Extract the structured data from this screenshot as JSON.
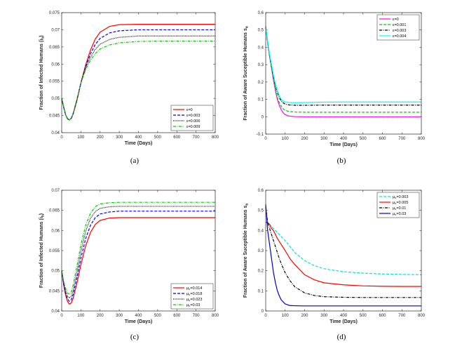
{
  "chart_data": [
    {
      "type": "line",
      "caption": "(a)",
      "xlabel": "Time (Days)",
      "ylabel": "Fraction of Infected Humans (i_h)",
      "xlim": [
        0,
        800
      ],
      "ylim": [
        0.04,
        0.075
      ],
      "xticks": [
        0,
        100,
        200,
        300,
        400,
        500,
        600,
        700,
        800
      ],
      "yticks": [
        0.04,
        0.045,
        0.05,
        0.055,
        0.06,
        0.065,
        0.07,
        0.075
      ],
      "ytick_labels": [
        "0.04",
        "0.045",
        "0.05",
        "0.055",
        "0.06",
        "0.065",
        "0.07",
        "0.075"
      ],
      "legend_loc": "lower-right",
      "x": [
        0,
        10,
        20,
        30,
        40,
        50,
        60,
        80,
        100,
        125,
        150,
        175,
        200,
        250,
        300,
        400,
        500,
        600,
        700,
        800
      ],
      "series": [
        {
          "name": "ε=0",
          "sym": "ε",
          "val": "=0",
          "color": "#ff0000",
          "dash": "",
          "values": [
            0.05,
            0.0475,
            0.0453,
            0.0441,
            0.0437,
            0.0442,
            0.0455,
            0.0495,
            0.0545,
            0.0598,
            0.0641,
            0.0673,
            0.0693,
            0.071,
            0.0715,
            0.0716,
            0.0716,
            0.0716,
            0.0716,
            0.0716
          ]
        },
        {
          "name": "ε=0.003",
          "sym": "ε",
          "val": "=0.003",
          "color": "#0000ff",
          "dash": "4,2",
          "values": [
            0.05,
            0.0475,
            0.0453,
            0.0441,
            0.0437,
            0.0442,
            0.0456,
            0.0497,
            0.0545,
            0.0593,
            0.063,
            0.0657,
            0.0675,
            0.0691,
            0.0697,
            0.07,
            0.07,
            0.07,
            0.07,
            0.07
          ]
        },
        {
          "name": "ε=0.006",
          "sym": "ε",
          "val": "=0.006",
          "color": "#000000",
          "dash": "1,1.2",
          "values": [
            0.05,
            0.0475,
            0.0453,
            0.0441,
            0.0437,
            0.0442,
            0.0456,
            0.0498,
            0.0545,
            0.0588,
            0.062,
            0.0643,
            0.0658,
            0.0672,
            0.0678,
            0.0682,
            0.0682,
            0.0682,
            0.0682,
            0.0682
          ]
        },
        {
          "name": "ε=0.009",
          "sym": "ε",
          "val": "=0.009",
          "color": "#00cc00",
          "dash": "4,1.5,1,1.5",
          "values": [
            0.05,
            0.0475,
            0.0453,
            0.0441,
            0.0437,
            0.0442,
            0.0457,
            0.0499,
            0.0545,
            0.0584,
            0.0611,
            0.0631,
            0.0644,
            0.0656,
            0.0662,
            0.0666,
            0.0667,
            0.0667,
            0.0667,
            0.0667
          ]
        }
      ]
    },
    {
      "type": "line",
      "caption": "(b)",
      "xlabel": "Time (Days)",
      "ylabel": "Fraction of Aware Suceptible Humans s_a",
      "xlim": [
        0,
        800
      ],
      "ylim": [
        -0.1,
        0.6
      ],
      "xticks": [
        0,
        100,
        200,
        300,
        400,
        500,
        600,
        700,
        800
      ],
      "yticks": [
        -0.1,
        0,
        0.1,
        0.2,
        0.3,
        0.4,
        0.5,
        0.6
      ],
      "ytick_labels": [
        "-0.1",
        "0",
        "0.1",
        "0.2",
        "0.3",
        "0.4",
        "0.5",
        "0.6"
      ],
      "legend_loc": "top-right",
      "x": [
        0,
        10,
        20,
        30,
        40,
        50,
        60,
        70,
        80,
        90,
        100,
        120,
        150,
        200,
        300,
        400,
        500,
        600,
        700,
        800
      ],
      "series": [
        {
          "name": "ε=0",
          "sym": "ε",
          "val": "=0",
          "color": "#ff00ff",
          "dash": "",
          "values": [
            0.52,
            0.43,
            0.35,
            0.28,
            0.21,
            0.15,
            0.1,
            0.065,
            0.04,
            0.022,
            0.012,
            0.004,
            0.001,
            0.0,
            0.0,
            0.0,
            0.0,
            0.0,
            0.0,
            0.0
          ]
        },
        {
          "name": "ε=0.001",
          "sym": "ε",
          "val": "=0.001",
          "color": "#00cc00",
          "dash": "4,2",
          "values": [
            0.52,
            0.43,
            0.35,
            0.28,
            0.22,
            0.16,
            0.11,
            0.08,
            0.06,
            0.045,
            0.037,
            0.03,
            0.027,
            0.026,
            0.026,
            0.026,
            0.026,
            0.026,
            0.026,
            0.026
          ]
        },
        {
          "name": "ε=0.003",
          "sym": "ε",
          "val": "=0.003",
          "color": "#000000",
          "dash": "4,1.5,1,1.5",
          "values": [
            0.52,
            0.43,
            0.35,
            0.29,
            0.23,
            0.18,
            0.14,
            0.11,
            0.09,
            0.08,
            0.073,
            0.068,
            0.066,
            0.066,
            0.067,
            0.067,
            0.067,
            0.067,
            0.067,
            0.067
          ]
        },
        {
          "name": "ε=0.004",
          "sym": "ε",
          "val": "=0.004",
          "color": "#00ffff",
          "dash": "",
          "values": [
            0.52,
            0.44,
            0.36,
            0.3,
            0.24,
            0.19,
            0.15,
            0.12,
            0.1,
            0.09,
            0.085,
            0.082,
            0.081,
            0.082,
            0.084,
            0.085,
            0.085,
            0.085,
            0.085,
            0.085
          ]
        }
      ]
    },
    {
      "type": "line",
      "caption": "(c)",
      "xlabel": "Time (Days)",
      "ylabel": "Fraction of Infected Humans (i_h)",
      "xlim": [
        0,
        800
      ],
      "ylim": [
        0.04,
        0.07
      ],
      "xticks": [
        0,
        100,
        200,
        300,
        400,
        500,
        600,
        700,
        800
      ],
      "yticks": [
        0.04,
        0.045,
        0.05,
        0.055,
        0.06,
        0.065,
        0.07
      ],
      "ytick_labels": [
        "0.04",
        "0.045",
        "0.05",
        "0.055",
        "0.06",
        "0.065",
        "0.07"
      ],
      "legend_loc": "lower-right",
      "x": [
        0,
        10,
        20,
        30,
        40,
        50,
        60,
        80,
        100,
        125,
        150,
        175,
        200,
        250,
        300,
        400,
        500,
        600,
        700,
        800
      ],
      "series": [
        {
          "name": "μ_h=0.014",
          "sym": "μ",
          "sub": "h",
          "val": "=0.014",
          "color": "#ff0000",
          "dash": "",
          "values": [
            0.05,
            0.0465,
            0.044,
            0.0424,
            0.0417,
            0.042,
            0.0432,
            0.047,
            0.0515,
            0.0562,
            0.0595,
            0.0615,
            0.0625,
            0.0631,
            0.0632,
            0.0632,
            0.0632,
            0.0632,
            0.0632,
            0.0632
          ]
        },
        {
          "name": "μ_h=0.018",
          "sym": "μ",
          "sub": "h",
          "val": "=0.018",
          "color": "#0000ff",
          "dash": "4,2",
          "values": [
            0.05,
            0.0468,
            0.0445,
            0.043,
            0.0424,
            0.0428,
            0.0442,
            0.0483,
            0.0531,
            0.058,
            0.0613,
            0.0632,
            0.0641,
            0.0646,
            0.0648,
            0.0648,
            0.0648,
            0.0648,
            0.0648,
            0.0648
          ]
        },
        {
          "name": "μ_h=0.023",
          "sym": "μ",
          "sub": "h",
          "val": "=0.023",
          "color": "#000000",
          "dash": "1,1.2",
          "values": [
            0.05,
            0.0471,
            0.045,
            0.0437,
            0.0432,
            0.0437,
            0.0452,
            0.0497,
            0.0548,
            0.0598,
            0.063,
            0.0647,
            0.0655,
            0.0659,
            0.066,
            0.066,
            0.066,
            0.066,
            0.066,
            0.066
          ]
        },
        {
          "name": "μ_h=0.03",
          "sym": "μ",
          "sub": "h",
          "val": "=0.03",
          "color": "#00cc00",
          "dash": "4,1.5,1,1.5",
          "values": [
            0.05,
            0.0474,
            0.0457,
            0.0445,
            0.0441,
            0.0448,
            0.0465,
            0.0513,
            0.0565,
            0.0613,
            0.0643,
            0.0659,
            0.0666,
            0.0669,
            0.067,
            0.067,
            0.067,
            0.067,
            0.067,
            0.067
          ]
        }
      ]
    },
    {
      "type": "line",
      "caption": "(d)",
      "xlabel": "Time (Days)",
      "ylabel": "Fraction of Aware Suceptible Humans s_a",
      "xlim": [
        0,
        800
      ],
      "ylim": [
        0,
        0.6
      ],
      "xticks": [
        0,
        100,
        200,
        300,
        400,
        500,
        600,
        700,
        800
      ],
      "yticks": [
        0,
        0.1,
        0.2,
        0.3,
        0.4,
        0.5,
        0.6
      ],
      "ytick_labels": [
        "0",
        "0.1",
        "0.2",
        "0.3",
        "0.4",
        "0.5",
        "0.6"
      ],
      "legend_loc": "top-right",
      "x": [
        0,
        10,
        20,
        30,
        40,
        50,
        60,
        70,
        80,
        100,
        125,
        150,
        200,
        250,
        300,
        400,
        500,
        600,
        700,
        800
      ],
      "series": [
        {
          "name": "μ_h=0.003",
          "sym": "μ",
          "sub": "h",
          "val": "=0.003",
          "color": "#00e5e5",
          "dash": "4,2",
          "values": [
            0.44,
            0.44,
            0.43,
            0.42,
            0.41,
            0.4,
            0.39,
            0.38,
            0.37,
            0.35,
            0.32,
            0.29,
            0.25,
            0.225,
            0.21,
            0.195,
            0.188,
            0.184,
            0.182,
            0.18
          ]
        },
        {
          "name": "μ_h=0.005",
          "sym": "μ",
          "sub": "h",
          "val": "=0.005",
          "color": "#ff0000",
          "dash": "",
          "values": [
            0.44,
            0.44,
            0.43,
            0.41,
            0.4,
            0.38,
            0.36,
            0.345,
            0.33,
            0.3,
            0.26,
            0.23,
            0.18,
            0.155,
            0.14,
            0.13,
            0.125,
            0.123,
            0.122,
            0.122
          ]
        },
        {
          "name": "μ_h=0.01",
          "sym": "μ",
          "sub": "h",
          "val": "=0.01",
          "color": "#000000",
          "dash": "4,1.5,1,1.5",
          "values": [
            0.52,
            0.44,
            0.41,
            0.38,
            0.35,
            0.32,
            0.29,
            0.26,
            0.235,
            0.19,
            0.15,
            0.12,
            0.09,
            0.077,
            0.071,
            0.068,
            0.067,
            0.067,
            0.067,
            0.067
          ]
        },
        {
          "name": "μ_h=0.03",
          "sym": "μ",
          "sub": "h",
          "val": "=0.03",
          "color": "#0000cc",
          "dash": "",
          "values": [
            0.53,
            0.4,
            0.33,
            0.26,
            0.19,
            0.14,
            0.1,
            0.075,
            0.055,
            0.035,
            0.027,
            0.026,
            0.025,
            0.025,
            0.025,
            0.025,
            0.025,
            0.025,
            0.025,
            0.025
          ]
        }
      ]
    }
  ]
}
